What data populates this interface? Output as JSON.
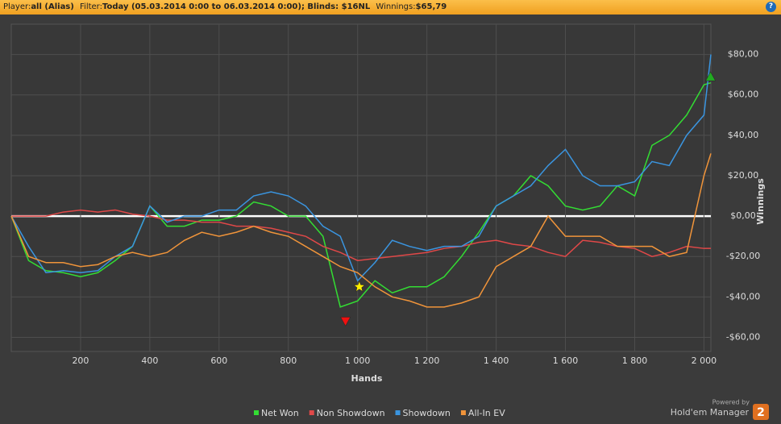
{
  "header": {
    "player_label": "Player:",
    "player": "all (Alias)",
    "filter_label": "Filter:",
    "filter": "Today (05.03.2014 0:00 to 06.03.2014 0:00); Blinds: $16NL",
    "winnings_label": "Winnings:",
    "winnings": "$65,79",
    "help": "?"
  },
  "branding": {
    "powered": "Powered by",
    "product": "Hold'em Manager",
    "version": "2"
  },
  "chart_data": {
    "type": "line",
    "x_label": "Hands",
    "y_label": "Winnings",
    "grid": true,
    "legend": "bottom",
    "x": [
      0,
      50,
      100,
      150,
      200,
      250,
      300,
      350,
      400,
      450,
      500,
      550,
      600,
      650,
      700,
      750,
      800,
      850,
      900,
      950,
      1000,
      1050,
      1100,
      1150,
      1200,
      1250,
      1300,
      1350,
      1400,
      1450,
      1500,
      1550,
      1600,
      1650,
      1700,
      1750,
      1800,
      1850,
      1900,
      1950,
      2000,
      2020
    ],
    "series": [
      {
        "name": "Net Won",
        "color": "#33dd33",
        "values": [
          0,
          -22,
          -27,
          -28,
          -30,
          -28,
          -22,
          -15,
          5,
          -5,
          -5,
          -2,
          -2,
          0,
          7,
          5,
          0,
          0,
          -10,
          -45,
          -42,
          -32,
          -38,
          -35,
          -35,
          -30,
          -20,
          -8,
          5,
          10,
          20,
          15,
          5,
          3,
          5,
          15,
          10,
          35,
          40,
          50,
          65,
          66
        ]
      },
      {
        "name": "Non Showdown",
        "color": "#e04848",
        "values": [
          0,
          0,
          0,
          2,
          3,
          2,
          3,
          1,
          0,
          -2,
          -2,
          -3,
          -3,
          -5,
          -5,
          -6,
          -8,
          -10,
          -15,
          -18,
          -22,
          -21,
          -20,
          -19,
          -18,
          -16,
          -15,
          -13,
          -12,
          -14,
          -15,
          -18,
          -20,
          -12,
          -13,
          -15,
          -16,
          -20,
          -18,
          -15,
          -16,
          -16
        ]
      },
      {
        "name": "Showdown",
        "color": "#3a95e0",
        "values": [
          0,
          -15,
          -28,
          -27,
          -28,
          -27,
          -20,
          -15,
          5,
          -3,
          0,
          0,
          3,
          3,
          10,
          12,
          10,
          5,
          -5,
          -10,
          -32,
          -23,
          -12,
          -15,
          -17,
          -15,
          -15,
          -10,
          5,
          10,
          15,
          25,
          33,
          20,
          15,
          15,
          17,
          27,
          25,
          40,
          50,
          80
        ]
      },
      {
        "name": "All-In EV",
        "color": "#f0943a",
        "values": [
          0,
          -20,
          -23,
          -23,
          -25,
          -24,
          -20,
          -18,
          -20,
          -18,
          -12,
          -8,
          -10,
          -8,
          -5,
          -8,
          -10,
          -15,
          -20,
          -25,
          -28,
          -35,
          -40,
          -42,
          -45,
          -45,
          -43,
          -40,
          -25,
          -20,
          -15,
          0,
          -10,
          -10,
          -10,
          -15,
          -15,
          -15,
          -20,
          -18,
          20,
          31
        ]
      }
    ],
    "markers": [
      {
        "x": 1005,
        "y": -35,
        "shape": "star",
        "color": "#ffee00"
      },
      {
        "x": 965,
        "y": -52,
        "shape": "down",
        "color": "#ee1111"
      },
      {
        "x": 2019,
        "y": 69,
        "shape": "up",
        "color": "#22aa22"
      }
    ],
    "xlim": [
      0,
      2020
    ],
    "ylim": [
      -67,
      95
    ],
    "xticks": [
      200,
      400,
      600,
      800,
      {
        "value": 1000,
        "label": "1 000"
      },
      {
        "value": 1200,
        "label": "1 200"
      },
      {
        "value": 1400,
        "label": "1 400"
      },
      {
        "value": 1600,
        "label": "1 600"
      },
      {
        "value": 1800,
        "label": "1 800"
      },
      {
        "value": 2000,
        "label": "2 000"
      }
    ],
    "yticks": [
      {
        "value": -60,
        "label": "-$60,00"
      },
      {
        "value": -40,
        "label": "-$40,00"
      },
      {
        "value": -20,
        "label": "-$20,00"
      },
      {
        "value": 0,
        "label": "$0,00"
      },
      {
        "value": 20,
        "label": "$20,00"
      },
      {
        "value": 40,
        "label": "$40,00"
      },
      {
        "value": 60,
        "label": "$60,00"
      },
      {
        "value": 80,
        "label": "$80,00"
      }
    ]
  }
}
